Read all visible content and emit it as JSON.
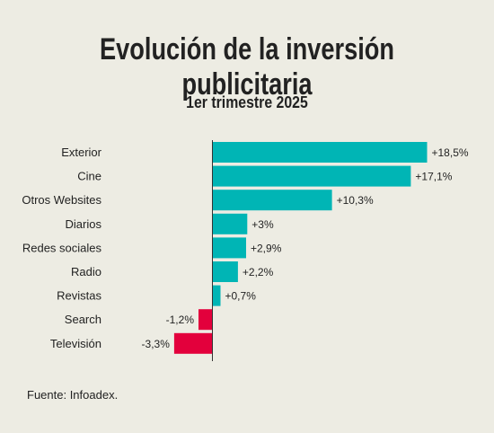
{
  "title": "Evolución de la inversión publicitaria",
  "subtitle": "1er trimestre 2025",
  "source": "Fuente: Infoadex.",
  "colors": {
    "positive": "#00b5b5",
    "negative": "#e3003c",
    "background": "#edece3"
  },
  "chart_data": {
    "type": "bar",
    "orientation": "horizontal",
    "categories": [
      "Exterior",
      "Cine",
      "Otros Websites",
      "Diarios",
      "Redes sociales",
      "Radio",
      "Revistas",
      "Search",
      "Televisión"
    ],
    "values": [
      18.5,
      17.1,
      10.3,
      3,
      2.9,
      2.2,
      0.7,
      -1.2,
      -3.3
    ],
    "labels": [
      "+18,5%",
      "+17,1%",
      "+10,3%",
      "+3%",
      "+2,9%",
      "+2,2%",
      "+0,7%",
      "-1,2%",
      "-3,3%"
    ],
    "xlim": [
      -3.3,
      18.5
    ],
    "unit": "%"
  }
}
